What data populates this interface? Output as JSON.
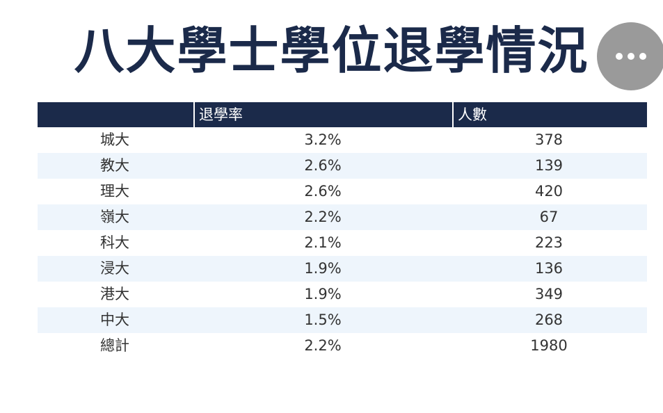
{
  "title": "八大學士學位退學情況",
  "chart_data": {
    "type": "table",
    "columns": [
      "",
      "退學率",
      "人數"
    ],
    "rows": [
      {
        "name": "城大",
        "rate": "3.2%",
        "count": "378"
      },
      {
        "name": "教大",
        "rate": "2.6%",
        "count": "139"
      },
      {
        "name": "理大",
        "rate": "2.6%",
        "count": "420"
      },
      {
        "name": "嶺大",
        "rate": "2.2%",
        "count": "67"
      },
      {
        "name": "科大",
        "rate": "2.1%",
        "count": "223"
      },
      {
        "name": "浸大",
        "rate": "1.9%",
        "count": "136"
      },
      {
        "name": "港大",
        "rate": "1.9%",
        "count": "349"
      },
      {
        "name": "中大",
        "rate": "1.5%",
        "count": "268"
      },
      {
        "name": "總計",
        "rate": "2.2%",
        "count": "1980"
      }
    ]
  },
  "colors": {
    "header_bg": "#1b2a4a",
    "title": "#1b2a4a",
    "alt_row": "#eef5fc",
    "more_button": "#9a9a9a"
  },
  "icons": {
    "more": "more-horizontal-icon"
  }
}
